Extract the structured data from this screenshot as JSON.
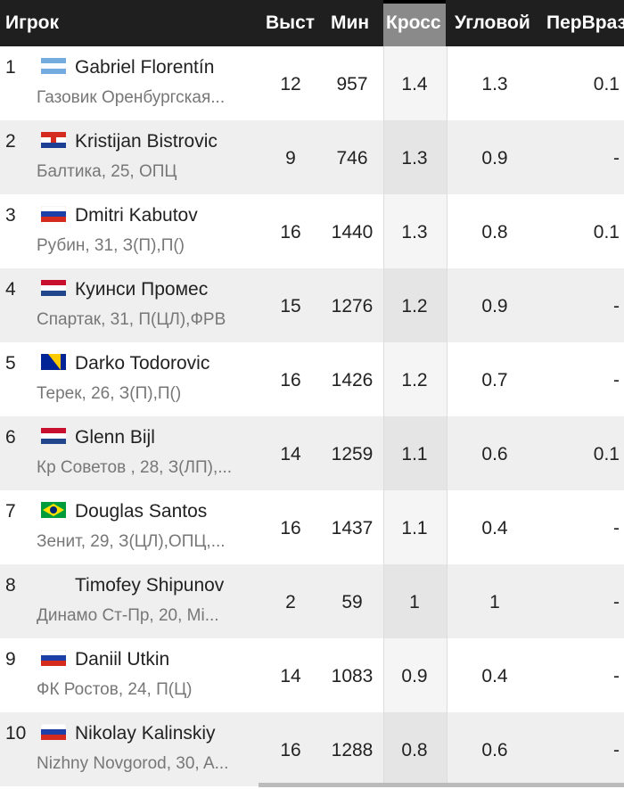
{
  "header": {
    "player": "Игрок",
    "apps": "Выст",
    "mins": "Мин",
    "cross": "Кросс",
    "corner": "Угловой",
    "freekick": "ПерВраз"
  },
  "rows": [
    {
      "rank": "1",
      "flag": "argentina",
      "name": "Gabriel Florentín",
      "club": "Газовик Оренбургская...",
      "apps": "12",
      "mins": "957",
      "cross": "1.4",
      "corner": "1.3",
      "freekick": "0.1"
    },
    {
      "rank": "2",
      "flag": "croatia",
      "name": "Kristijan Bistrovic",
      "club": "Балтика,  25, ОПЦ",
      "apps": "9",
      "mins": "746",
      "cross": "1.3",
      "corner": "0.9",
      "freekick": "-"
    },
    {
      "rank": "3",
      "flag": "russia",
      "name": "Dmitri Kabutov",
      "club": "Рубин,  31, З(П),П()",
      "apps": "16",
      "mins": "1440",
      "cross": "1.3",
      "corner": "0.8",
      "freekick": "0.1"
    },
    {
      "rank": "4",
      "flag": "netherlands",
      "name": "Куинси Промес",
      "club": "Спартак,  31, П(ЦЛ),ФРВ",
      "apps": "15",
      "mins": "1276",
      "cross": "1.2",
      "corner": "0.9",
      "freekick": "-"
    },
    {
      "rank": "5",
      "flag": "bosnia",
      "name": "Darko Todorovic",
      "club": "Терек,  26, З(П),П()",
      "apps": "16",
      "mins": "1426",
      "cross": "1.2",
      "corner": "0.7",
      "freekick": "-"
    },
    {
      "rank": "6",
      "flag": "netherlands",
      "name": "Glenn Bijl",
      "club": "Кр Советов ,  28, З(ЛП),...",
      "apps": "14",
      "mins": "1259",
      "cross": "1.1",
      "corner": "0.6",
      "freekick": "0.1"
    },
    {
      "rank": "7",
      "flag": "brazil",
      "name": "Douglas Santos",
      "club": "Зенит,  29, З(ЦЛ),ОПЦ,...",
      "apps": "16",
      "mins": "1437",
      "cross": "1.1",
      "corner": "0.4",
      "freekick": "-"
    },
    {
      "rank": "8",
      "flag": "none",
      "name": "Timofey Shipunov",
      "club": "Динамо Ст-Пр,  20, Mi...",
      "apps": "2",
      "mins": "59",
      "cross": "1",
      "corner": "1",
      "freekick": "-"
    },
    {
      "rank": "9",
      "flag": "russia",
      "name": "Daniil Utkin",
      "club": "ФК Ростов,  24, П(Ц)",
      "apps": "14",
      "mins": "1083",
      "cross": "0.9",
      "corner": "0.4",
      "freekick": "-"
    },
    {
      "rank": "10",
      "flag": "russia",
      "name": "Nikolay Kalinskiy",
      "club": "Nizhny Novgorod,  30, A...",
      "apps": "16",
      "mins": "1288",
      "cross": "0.8",
      "corner": "0.6",
      "freekick": "-"
    }
  ]
}
